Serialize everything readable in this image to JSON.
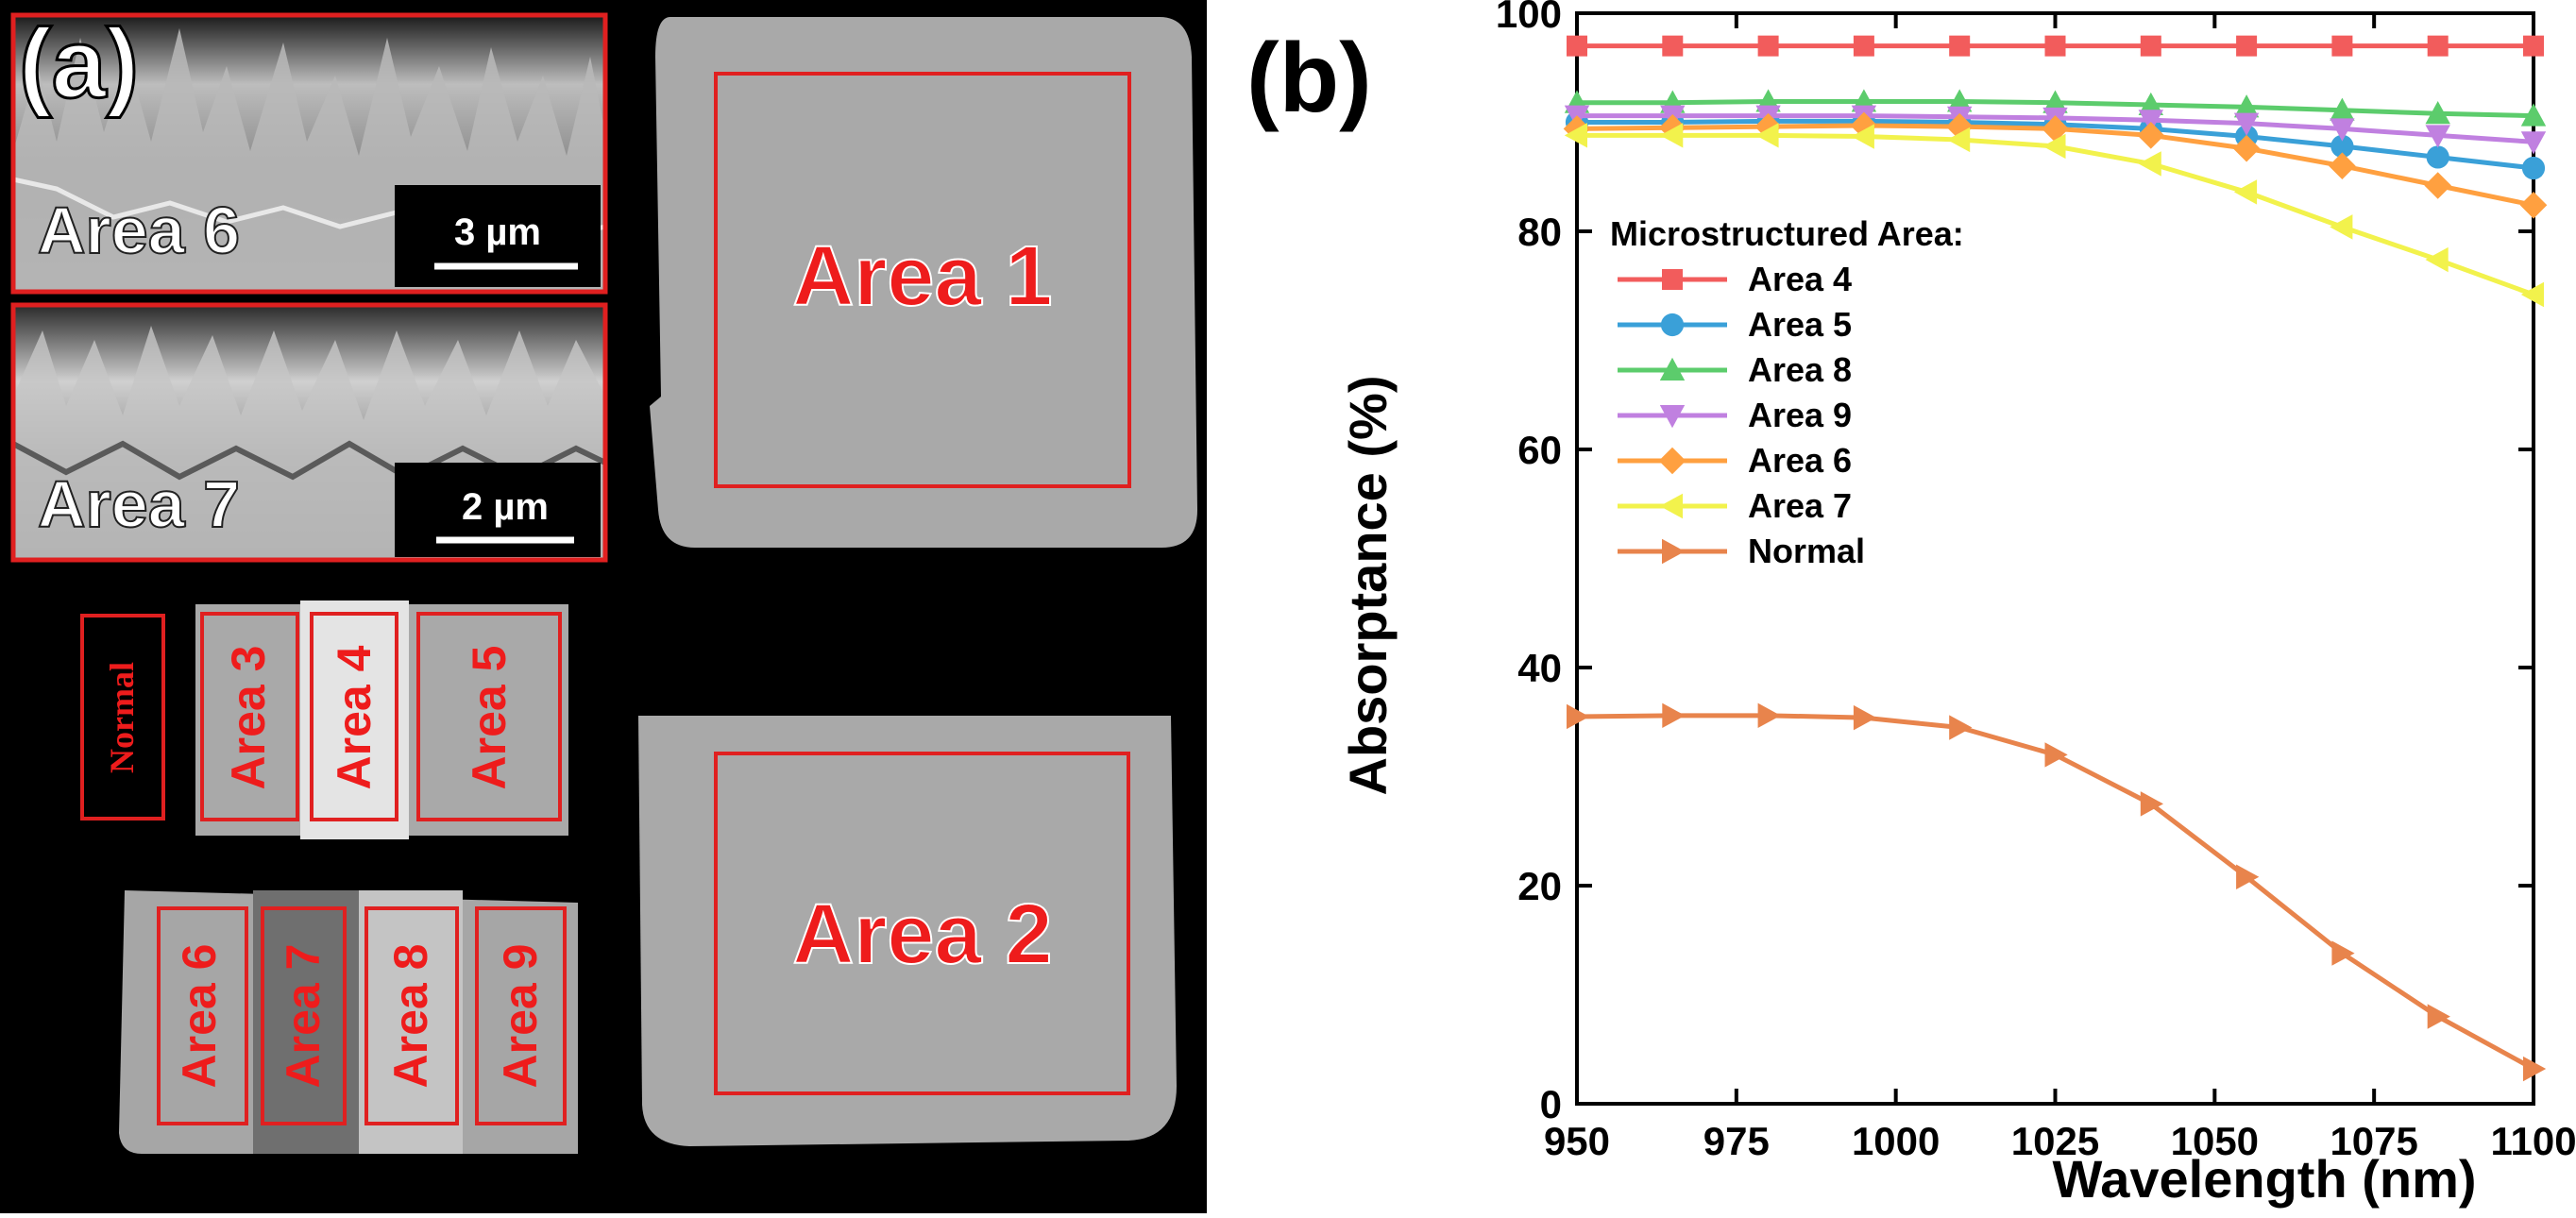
{
  "panel_a": {
    "panel_label": "(a)",
    "insets": [
      {
        "area": "Area 6",
        "scale": "3 µm"
      },
      {
        "area": "Area 7",
        "scale": "2 µm"
      }
    ],
    "samples": {
      "area1": "Area 1",
      "area2": "Area 2",
      "normal": "Normal",
      "area3": "Area 3",
      "area4": "Area 4",
      "area5": "Area 5",
      "area6": "Area 6",
      "area7": "Area 7",
      "area8": "Area 8",
      "area9": "Area 9"
    },
    "colors": {
      "background": "#000000",
      "outline": "#e02020",
      "sample": "#a8a8a8"
    }
  },
  "chart_data": {
    "type": "line",
    "panel_label": "(b)",
    "title": "",
    "xlabel": "Wavelength (nm)",
    "ylabel": "Absorptance (%)",
    "xlim": [
      950,
      1100
    ],
    "ylim": [
      0,
      100
    ],
    "xticks": [
      950,
      975,
      1000,
      1025,
      1050,
      1075,
      1100
    ],
    "yticks": [
      0,
      20,
      40,
      60,
      80,
      100
    ],
    "legend_title": "Microstructured Area:",
    "legend_position": "upper-left",
    "x": [
      950,
      965,
      980,
      995,
      1010,
      1025,
      1040,
      1055,
      1070,
      1085,
      1100
    ],
    "series": [
      {
        "name": "Area 4",
        "color": "#f25c5c",
        "marker": "square",
        "values": [
          97.0,
          97.0,
          97.0,
          97.0,
          97.0,
          97.0,
          97.0,
          97.0,
          97.0,
          97.0,
          97.0
        ]
      },
      {
        "name": "Area 5",
        "color": "#3aa0d8",
        "marker": "circle",
        "values": [
          90.0,
          90.0,
          90.1,
          90.1,
          90.0,
          89.8,
          89.4,
          88.7,
          87.8,
          86.8,
          85.8
        ]
      },
      {
        "name": "Area 8",
        "color": "#5ccc6c",
        "marker": "triangle-up",
        "values": [
          91.8,
          91.8,
          91.9,
          91.9,
          91.9,
          91.8,
          91.6,
          91.4,
          91.1,
          90.8,
          90.6
        ]
      },
      {
        "name": "Area 9",
        "color": "#c080e0",
        "marker": "triangle-down",
        "values": [
          90.6,
          90.6,
          90.6,
          90.6,
          90.5,
          90.4,
          90.2,
          89.9,
          89.4,
          88.8,
          88.2
        ]
      },
      {
        "name": "Area 6",
        "color": "#ffa040",
        "marker": "diamond",
        "values": [
          89.4,
          89.5,
          89.6,
          89.7,
          89.6,
          89.4,
          88.8,
          87.6,
          86.0,
          84.2,
          82.4
        ]
      },
      {
        "name": "Area 7",
        "color": "#f2f24c",
        "marker": "triangle-left",
        "values": [
          88.8,
          88.8,
          88.8,
          88.7,
          88.4,
          87.8,
          86.2,
          83.6,
          80.4,
          77.4,
          74.2
        ]
      },
      {
        "name": "Normal",
        "color": "#e8844c",
        "marker": "triangle-right",
        "values": [
          35.5,
          35.6,
          35.6,
          35.4,
          34.5,
          32.0,
          27.5,
          20.8,
          13.8,
          8.0,
          3.2
        ]
      }
    ]
  }
}
